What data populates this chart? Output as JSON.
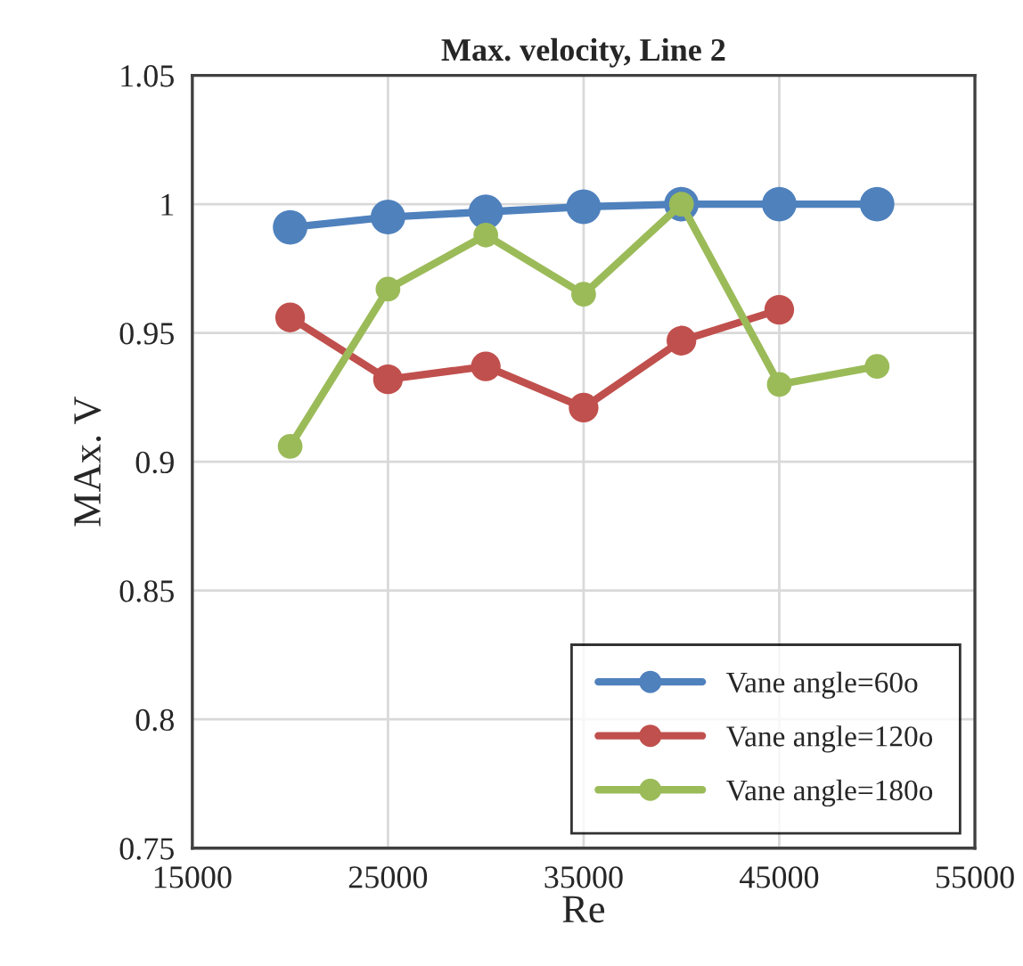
{
  "chart_data": {
    "type": "line",
    "title": "Max. velocity, Line 2",
    "xlabel": "Re",
    "ylabel": "MAx. V",
    "x": [
      20000,
      25000,
      30000,
      35000,
      40000,
      45000,
      50000
    ],
    "series": [
      {
        "name": "Vane angle=60o",
        "color": "#4f81bd",
        "values": [
          0.991,
          0.995,
          0.997,
          0.999,
          1.0,
          1.0,
          1.0
        ]
      },
      {
        "name": "Vane angle=120o",
        "color": "#c0504d",
        "values": [
          0.956,
          0.932,
          0.937,
          0.921,
          0.947,
          0.959,
          null
        ]
      },
      {
        "name": "Vane angle=180o",
        "color": "#9bbb59",
        "values": [
          0.906,
          0.967,
          0.988,
          0.965,
          1.0,
          0.93,
          0.937
        ]
      }
    ],
    "xlim": [
      15000,
      55000
    ],
    "xticks": [
      15000,
      25000,
      35000,
      45000,
      55000
    ],
    "ylim": [
      0.75,
      1.05
    ],
    "yticks": [
      {
        "value": 0.75,
        "label": "0.75"
      },
      {
        "value": 0.8,
        "label": "0.8"
      },
      {
        "value": 0.85,
        "label": "0.85"
      },
      {
        "value": 0.9,
        "label": "0.9"
      },
      {
        "value": 0.95,
        "label": "0.95"
      },
      {
        "value": 1.0,
        "label": "1"
      },
      {
        "value": 1.05,
        "label": "1.05"
      }
    ],
    "grid": true,
    "legend": "bottom right",
    "marker": "circle",
    "line_style": "solid"
  }
}
